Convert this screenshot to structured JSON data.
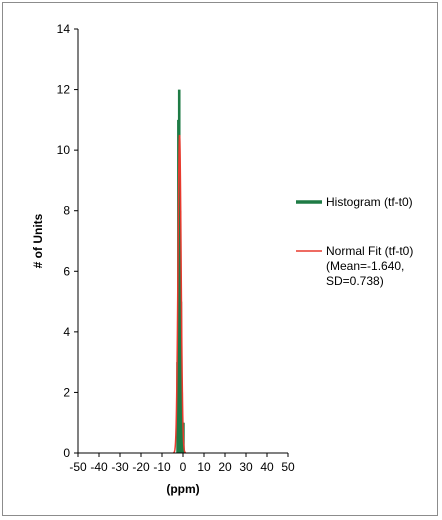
{
  "chart_data": {
    "type": "bar",
    "xlabel": "(ppm)",
    "ylabel": "# of Units",
    "xlim": [
      -50,
      50
    ],
    "ylim": [
      0,
      14
    ],
    "x_ticks": [
      -50,
      -40,
      -30,
      -20,
      -10,
      0,
      10,
      20,
      30,
      40,
      50
    ],
    "y_ticks": [
      0,
      2,
      4,
      6,
      8,
      10,
      12,
      14
    ],
    "grid": false,
    "legend_position": "right",
    "series": [
      {
        "name": "Histogram (tf-t0)",
        "type": "histogram",
        "color": "#1e7b45",
        "x": [
          -2.6,
          -2.2,
          -1.8,
          -1.4,
          -1.0,
          -0.6,
          -0.2,
          0.2
        ],
        "values": [
          3,
          11,
          12,
          8,
          5,
          2,
          1,
          1
        ]
      },
      {
        "name": "Normal Fit (tf-t0)",
        "name_lines": [
          "Normal Fit (tf-t0)",
          "(Mean=-1.640,",
          "SD=0.738)"
        ],
        "type": "line",
        "color": "#e83a2e",
        "mean": -1.64,
        "sd": 0.738,
        "peak": 10.5
      }
    ]
  }
}
